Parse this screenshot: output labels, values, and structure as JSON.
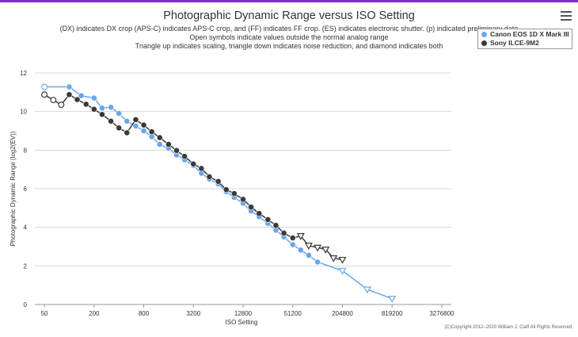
{
  "chart_data": {
    "type": "line",
    "title": "Photographic Dynamic Range versus ISO Setting",
    "subtitles": [
      "(DX) indicates DX crop (APS-C) indicates APS-C crop, and (FF) indicates FF crop. (ES) indicates electronic shutter. (p) indicated preliminary data",
      "Open symbols indicate values outside the normal analog range",
      "Triangle up indicates scaling, triangle down indicates noise reduction, and diamond indicates both"
    ],
    "xlabel": "ISO Setting",
    "ylabel": "Photographic Dynamic Range (log2(EV))",
    "x_scale": "log2",
    "x_ticks": [
      50,
      200,
      800,
      3200,
      12800,
      51200,
      204800,
      819200,
      3276800
    ],
    "x_tick_labels": [
      "50",
      "200",
      "800",
      "3200",
      "12800",
      "51200",
      "204800",
      "819200",
      "3276800"
    ],
    "ylim": [
      0,
      12
    ],
    "y_ticks": [
      0,
      2,
      4,
      6,
      8,
      10,
      12
    ],
    "grid": "horizontal",
    "legend_position": "top-right",
    "series": [
      {
        "name": "Canon EOS 1D X Mark III",
        "color": "#6aa6e8",
        "points": [
          {
            "x": 50,
            "y": 11.28,
            "marker": "circle-open"
          },
          {
            "x": 100,
            "y": 11.28,
            "marker": "circle"
          },
          {
            "x": 140,
            "y": 10.82,
            "marker": "circle"
          },
          {
            "x": 200,
            "y": 10.7,
            "marker": "circle"
          },
          {
            "x": 250,
            "y": 10.18,
            "marker": "circle"
          },
          {
            "x": 320,
            "y": 10.22,
            "marker": "circle"
          },
          {
            "x": 400,
            "y": 9.9,
            "marker": "circle"
          },
          {
            "x": 500,
            "y": 9.5,
            "marker": "circle"
          },
          {
            "x": 640,
            "y": 9.25,
            "marker": "circle"
          },
          {
            "x": 800,
            "y": 9.0,
            "marker": "circle"
          },
          {
            "x": 1000,
            "y": 8.7,
            "marker": "circle"
          },
          {
            "x": 1250,
            "y": 8.3,
            "marker": "circle"
          },
          {
            "x": 1600,
            "y": 8.1,
            "marker": "circle"
          },
          {
            "x": 2000,
            "y": 7.75,
            "marker": "circle"
          },
          {
            "x": 2500,
            "y": 7.5,
            "marker": "circle"
          },
          {
            "x": 3200,
            "y": 7.2,
            "marker": "circle"
          },
          {
            "x": 4000,
            "y": 6.8,
            "marker": "circle"
          },
          {
            "x": 5000,
            "y": 6.5,
            "marker": "circle"
          },
          {
            "x": 6400,
            "y": 6.25,
            "marker": "circle"
          },
          {
            "x": 8000,
            "y": 5.85,
            "marker": "circle"
          },
          {
            "x": 10000,
            "y": 5.55,
            "marker": "circle"
          },
          {
            "x": 12800,
            "y": 5.25,
            "marker": "circle"
          },
          {
            "x": 16000,
            "y": 4.85,
            "marker": "circle"
          },
          {
            "x": 20000,
            "y": 4.55,
            "marker": "circle"
          },
          {
            "x": 25600,
            "y": 4.2,
            "marker": "circle"
          },
          {
            "x": 32000,
            "y": 3.85,
            "marker": "circle"
          },
          {
            "x": 40000,
            "y": 3.5,
            "marker": "circle"
          },
          {
            "x": 51200,
            "y": 3.1,
            "marker": "circle"
          },
          {
            "x": 64000,
            "y": 2.82,
            "marker": "circle"
          },
          {
            "x": 80000,
            "y": 2.55,
            "marker": "circle"
          },
          {
            "x": 102400,
            "y": 2.2,
            "marker": "circle"
          },
          {
            "x": 204800,
            "y": 1.75,
            "marker": "triangle-down-open"
          },
          {
            "x": 409600,
            "y": 0.78,
            "marker": "triangle-down-open"
          },
          {
            "x": 819200,
            "y": 0.3,
            "marker": "triangle-down-open"
          }
        ]
      },
      {
        "name": "Sony ILCE-9M2",
        "color": "#3a3a3a",
        "points": [
          {
            "x": 50,
            "y": 10.88,
            "marker": "circle-open"
          },
          {
            "x": 64,
            "y": 10.6,
            "marker": "circle-open"
          },
          {
            "x": 80,
            "y": 10.35,
            "marker": "circle-open"
          },
          {
            "x": 100,
            "y": 10.88,
            "marker": "circle"
          },
          {
            "x": 125,
            "y": 10.62,
            "marker": "circle"
          },
          {
            "x": 160,
            "y": 10.38,
            "marker": "circle"
          },
          {
            "x": 200,
            "y": 10.12,
            "marker": "circle"
          },
          {
            "x": 250,
            "y": 9.85,
            "marker": "circle"
          },
          {
            "x": 320,
            "y": 9.5,
            "marker": "circle"
          },
          {
            "x": 400,
            "y": 9.15,
            "marker": "circle"
          },
          {
            "x": 500,
            "y": 8.9,
            "marker": "circle"
          },
          {
            "x": 640,
            "y": 9.58,
            "marker": "circle"
          },
          {
            "x": 800,
            "y": 9.3,
            "marker": "circle"
          },
          {
            "x": 1000,
            "y": 8.95,
            "marker": "circle"
          },
          {
            "x": 1250,
            "y": 8.65,
            "marker": "circle"
          },
          {
            "x": 1600,
            "y": 8.3,
            "marker": "circle"
          },
          {
            "x": 2000,
            "y": 7.98,
            "marker": "circle"
          },
          {
            "x": 2500,
            "y": 7.68,
            "marker": "circle"
          },
          {
            "x": 3200,
            "y": 7.28,
            "marker": "circle"
          },
          {
            "x": 4000,
            "y": 7.05,
            "marker": "circle"
          },
          {
            "x": 5000,
            "y": 6.62,
            "marker": "circle"
          },
          {
            "x": 6400,
            "y": 6.38,
            "marker": "circle"
          },
          {
            "x": 8000,
            "y": 5.95,
            "marker": "circle"
          },
          {
            "x": 10000,
            "y": 5.75,
            "marker": "circle"
          },
          {
            "x": 12800,
            "y": 5.45,
            "marker": "circle"
          },
          {
            "x": 16000,
            "y": 5.05,
            "marker": "circle"
          },
          {
            "x": 20000,
            "y": 4.72,
            "marker": "circle"
          },
          {
            "x": 25600,
            "y": 4.4,
            "marker": "circle"
          },
          {
            "x": 32000,
            "y": 4.1,
            "marker": "circle"
          },
          {
            "x": 40000,
            "y": 3.7,
            "marker": "circle"
          },
          {
            "x": 51200,
            "y": 3.45,
            "marker": "circle"
          },
          {
            "x": 64000,
            "y": 3.55,
            "marker": "triangle-down-open"
          },
          {
            "x": 80000,
            "y": 3.05,
            "marker": "triangle-down-open"
          },
          {
            "x": 102400,
            "y": 2.95,
            "marker": "triangle-down-open"
          },
          {
            "x": 128000,
            "y": 2.85,
            "marker": "triangle-down-open"
          },
          {
            "x": 160000,
            "y": 2.4,
            "marker": "triangle-down-open"
          },
          {
            "x": 204800,
            "y": 2.32,
            "marker": "triangle-down-open"
          }
        ]
      }
    ]
  },
  "copyright": "(C)Copyright 2012–2020 William J. Claff All Rights Reserved."
}
